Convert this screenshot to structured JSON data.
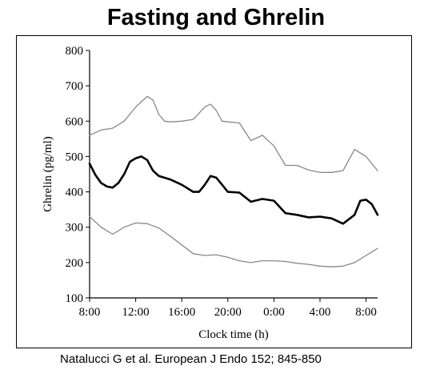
{
  "title": "Fasting and Ghrelin",
  "citation": "Natalucci G et al. European J Endo 152; 845-850",
  "chart_data": {
    "type": "line",
    "xlabel": "Clock time (h)",
    "ylabel": "Ghrelin (pg/ml)",
    "x_ticks": [
      "8:00",
      "12:00",
      "16:00",
      "20:00",
      "0:00",
      "4:00",
      "8:00"
    ],
    "x_tick_hours": [
      0,
      4,
      8,
      12,
      16,
      20,
      24
    ],
    "xlim": [
      0,
      25
    ],
    "ylim": [
      100,
      800
    ],
    "y_ticks": [
      100,
      200,
      300,
      400,
      500,
      600,
      700,
      800
    ],
    "grid": false,
    "series": [
      {
        "role": "upper",
        "color": "#888888",
        "x": [
          0,
          1,
          2,
          3,
          4,
          5,
          5.5,
          6,
          6.5,
          7,
          8,
          9,
          10,
          10.5,
          11,
          11.5,
          12,
          13,
          14,
          15,
          16,
          17,
          18,
          19,
          20,
          21,
          22,
          23,
          24,
          25
        ],
        "y": [
          560,
          575,
          580,
          600,
          640,
          670,
          660,
          620,
          600,
          598,
          600,
          605,
          640,
          648,
          630,
          600,
          598,
          595,
          545,
          560,
          530,
          475,
          475,
          462,
          455,
          455,
          460,
          520,
          500,
          460
        ]
      },
      {
        "role": "mean",
        "color": "#000000",
        "x": [
          0,
          0.5,
          1,
          1.5,
          2,
          2.5,
          3,
          3.5,
          4,
          4.5,
          5,
          5.5,
          6,
          6.5,
          7,
          8,
          9,
          9.5,
          10,
          10.5,
          11,
          11.5,
          12,
          13,
          14,
          15,
          16,
          17,
          18,
          19,
          20,
          21,
          22,
          23,
          23.5,
          24,
          24.5,
          25
        ],
        "y": [
          480,
          448,
          425,
          415,
          412,
          425,
          450,
          485,
          495,
          500,
          490,
          460,
          445,
          440,
          435,
          420,
          400,
          400,
          420,
          445,
          440,
          420,
          400,
          398,
          372,
          380,
          375,
          340,
          335,
          328,
          330,
          325,
          310,
          335,
          375,
          378,
          365,
          335
        ]
      },
      {
        "role": "lower",
        "color": "#888888",
        "x": [
          0,
          1,
          2,
          3,
          4,
          5,
          6,
          7,
          8,
          9,
          10,
          11,
          12,
          13,
          14,
          15,
          16,
          17,
          18,
          19,
          20,
          21,
          22,
          23,
          24,
          25
        ],
        "y": [
          330,
          300,
          280,
          300,
          312,
          310,
          298,
          275,
          250,
          225,
          220,
          222,
          215,
          205,
          200,
          205,
          205,
          203,
          198,
          195,
          190,
          188,
          190,
          200,
          220,
          240
        ]
      }
    ]
  }
}
